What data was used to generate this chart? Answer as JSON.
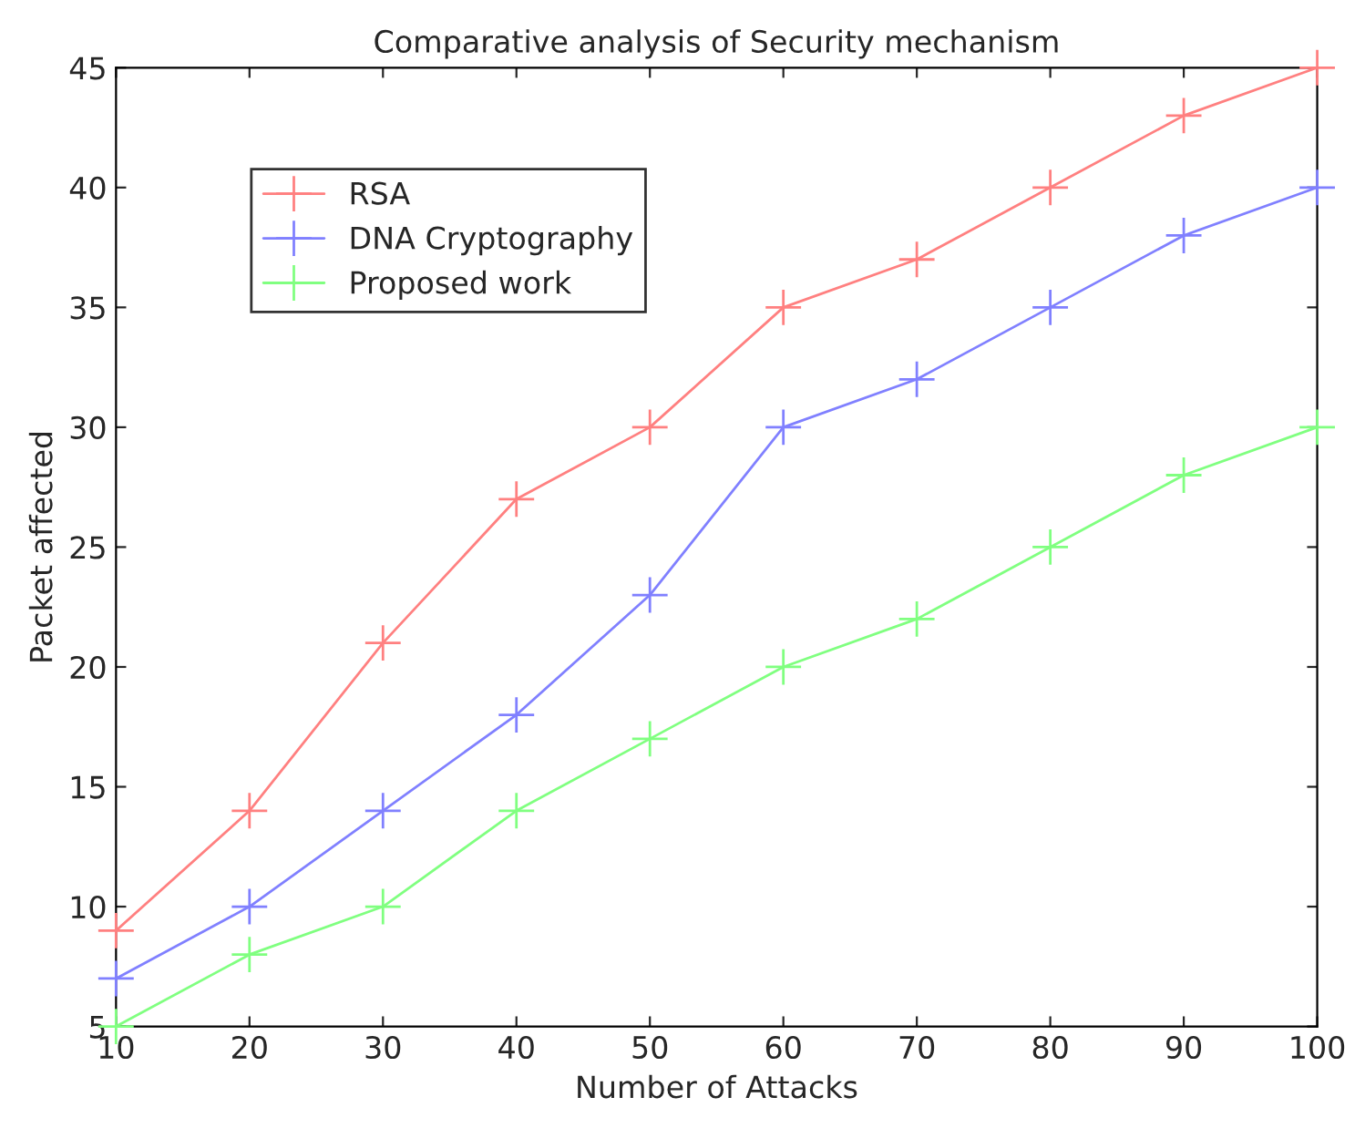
{
  "chart_data": {
    "type": "line",
    "title": "Comparative analysis of Security mechanism",
    "xlabel": "Number of Attacks",
    "ylabel": "Packet affected",
    "x": [
      10,
      20,
      30,
      40,
      50,
      60,
      70,
      80,
      90,
      100
    ],
    "series": [
      {
        "name": "RSA",
        "color": "#ff8080",
        "values": [
          9,
          14,
          21,
          27,
          30,
          35,
          37,
          40,
          43,
          45
        ]
      },
      {
        "name": "DNA Cryptography",
        "color": "#8080ff",
        "values": [
          7,
          10,
          14,
          18,
          23,
          30,
          32,
          35,
          38,
          40
        ]
      },
      {
        "name": "Proposed work",
        "color": "#80ff80",
        "values": [
          5,
          8,
          10,
          14,
          17,
          20,
          22,
          25,
          28,
          30
        ]
      }
    ],
    "xlim": [
      10,
      100
    ],
    "ylim": [
      5,
      45
    ],
    "xticks": [
      10,
      20,
      30,
      40,
      50,
      60,
      70,
      80,
      90,
      100
    ],
    "yticks": [
      5,
      10,
      15,
      20,
      25,
      30,
      35,
      40,
      45
    ],
    "grid": false,
    "legend": "top left",
    "marker": "cross",
    "line_style": "solid"
  }
}
